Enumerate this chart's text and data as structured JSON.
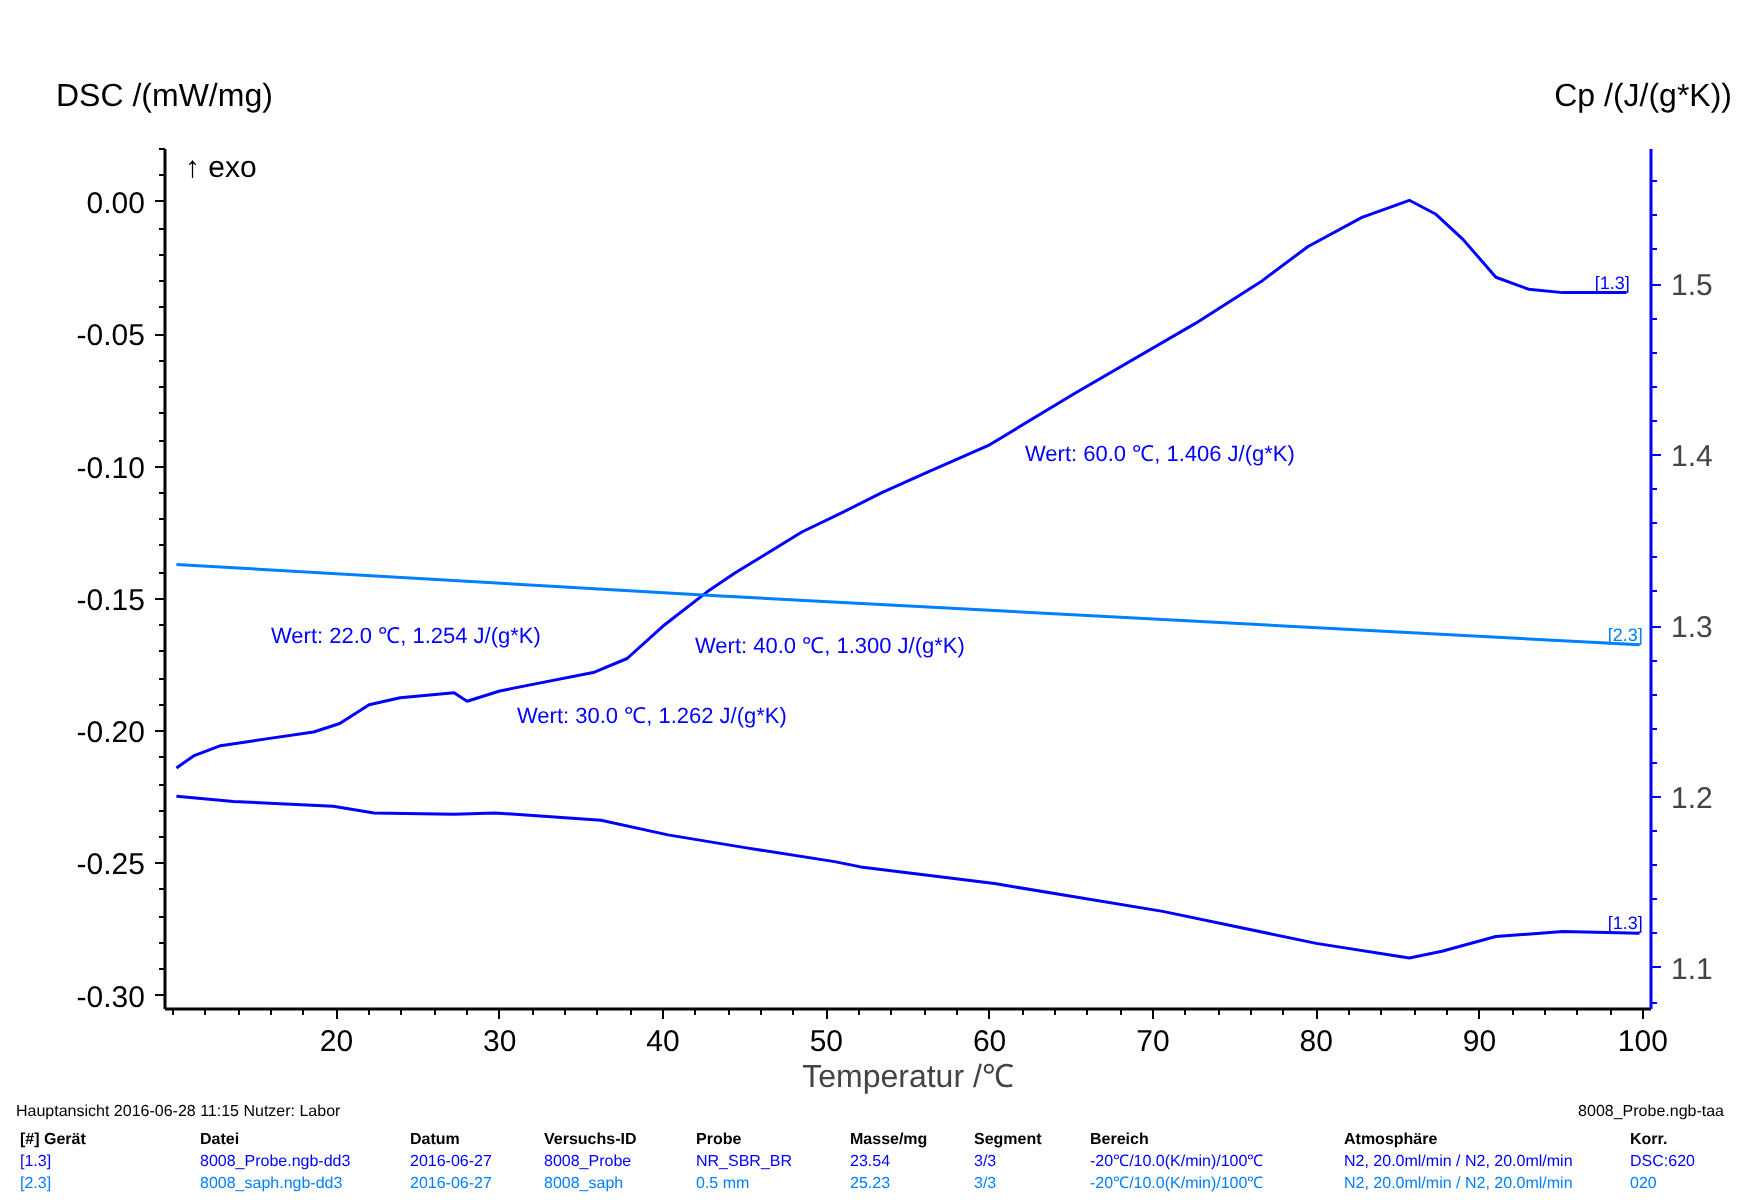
{
  "chart_data": {
    "type": "line",
    "xlabel": "Temperatur /℃",
    "ylabel": "DSC /(mW/mg)",
    "y2label": "Cp /(J/(g*K))",
    "xlim": [
      9.5,
      100.5
    ],
    "xticks": [
      20,
      30,
      40,
      50,
      60,
      70,
      80,
      90,
      100
    ],
    "ylim": [
      -0.305,
      0.02
    ],
    "yticks": [
      {
        "value": 0,
        "label": "0.00"
      },
      {
        "value": -0.05,
        "label": "-0.05"
      },
      {
        "value": -0.1,
        "label": "-0.10"
      },
      {
        "value": -0.15,
        "label": "-0.15"
      },
      {
        "value": -0.2,
        "label": "-0.20"
      },
      {
        "value": -0.25,
        "label": "-0.25"
      },
      {
        "value": -0.3,
        "label": "-0.30"
      }
    ],
    "y2lim": [
      1.076,
      1.579
    ],
    "y2ticks": [
      1.1,
      1.2,
      1.3,
      1.4,
      1.5
    ],
    "grid": false,
    "marker": "none",
    "line_style": "solid",
    "series": [
      {
        "name": "[1.3]",
        "color": "#0000ff",
        "axis": "y2",
        "x": [
          10.2,
          11.25,
          12.9,
          15.7,
          18.6,
          20.2,
          22.0,
          23.9,
          27.2,
          28.0,
          30.0,
          32.1,
          35.8,
          37.8,
          40.0,
          42.7,
          44.4,
          48.5,
          50.9,
          53.4,
          56.2,
          60.0,
          65.2,
          72.6,
          76.7,
          79.5,
          82.8,
          85.7,
          87.3,
          89.0,
          91.0,
          93.0,
          95.1,
          99.0
        ],
        "values": [
          1.217,
          1.224,
          1.23,
          1.234,
          1.238,
          1.243,
          1.254,
          1.258,
          1.261,
          1.256,
          1.262,
          1.266,
          1.273,
          1.281,
          1.3,
          1.32,
          1.331,
          1.355,
          1.366,
          1.378,
          1.39,
          1.406,
          1.436,
          1.477,
          1.502,
          1.522,
          1.539,
          1.549,
          1.541,
          1.526,
          1.504,
          1.497,
          1.495,
          1.495
        ]
      },
      {
        "name": "[1.3]",
        "color": "#0000ff",
        "x": [
          10.2,
          13.7,
          19.8,
          22.3,
          27.2,
          29.7,
          36.2,
          40.3,
          45.2,
          50.5,
          52.1,
          60.3,
          70.6,
          80.0,
          85.7,
          87.7,
          91.0,
          95.1,
          99.8
        ],
        "values": [
          -0.2246,
          -0.2266,
          -0.2284,
          -0.2309,
          -0.2314,
          -0.2309,
          -0.2337,
          -0.2392,
          -0.2442,
          -0.2493,
          -0.2513,
          -0.2576,
          -0.2681,
          -0.2802,
          -0.2857,
          -0.2832,
          -0.2776,
          -0.2757,
          -0.2764
        ]
      },
      {
        "name": "[2.3]",
        "color": "#0080ff",
        "axis": "y2",
        "x": [
          10.2,
          42.7,
          99.8
        ],
        "values": [
          1.336,
          1.318,
          1.289
        ]
      }
    ],
    "annotations": [
      "Wert: 22.0 ℃, 1.254 J/(g*K)",
      "Wert: 30.0 ℃, 1.262 J/(g*K)",
      "Wert: 40.0 ℃, 1.300 J/(g*K)",
      "Wert: 60.0 ℃, 1.406 J/(g*K)",
      "↑ exo",
      "Hauptansicht    2016-06-28 11:15    Nutzer: Labor",
      "8008_Probe.ngb-taa",
      "[#] Gerät",
      "Datei",
      "Datum",
      "Versuchs-ID",
      "Probe",
      "Masse/mg",
      "Segment",
      "Bereich",
      "Atmosphäre",
      "Korr.",
      "[1.3]",
      "8008_Probe.ngb-dd3",
      "2016-06-27",
      "8008_Probe",
      "NR_SBR_BR",
      "23.54",
      "3/3",
      "-20℃/10.0(K/min)/100℃",
      "N2, 20.0ml/min / N2, 20.0ml/min",
      "DSC:620",
      "[2.3]",
      "8008_saph.ngb-dd3",
      "2016-06-27",
      "8008_saph",
      "0.5 mm",
      "25.23",
      "3/3",
      "-20℃/10.0(K/min)/100℃",
      "N2, 20.0ml/min / N2, 20.0ml/min",
      "020"
    ]
  }
}
